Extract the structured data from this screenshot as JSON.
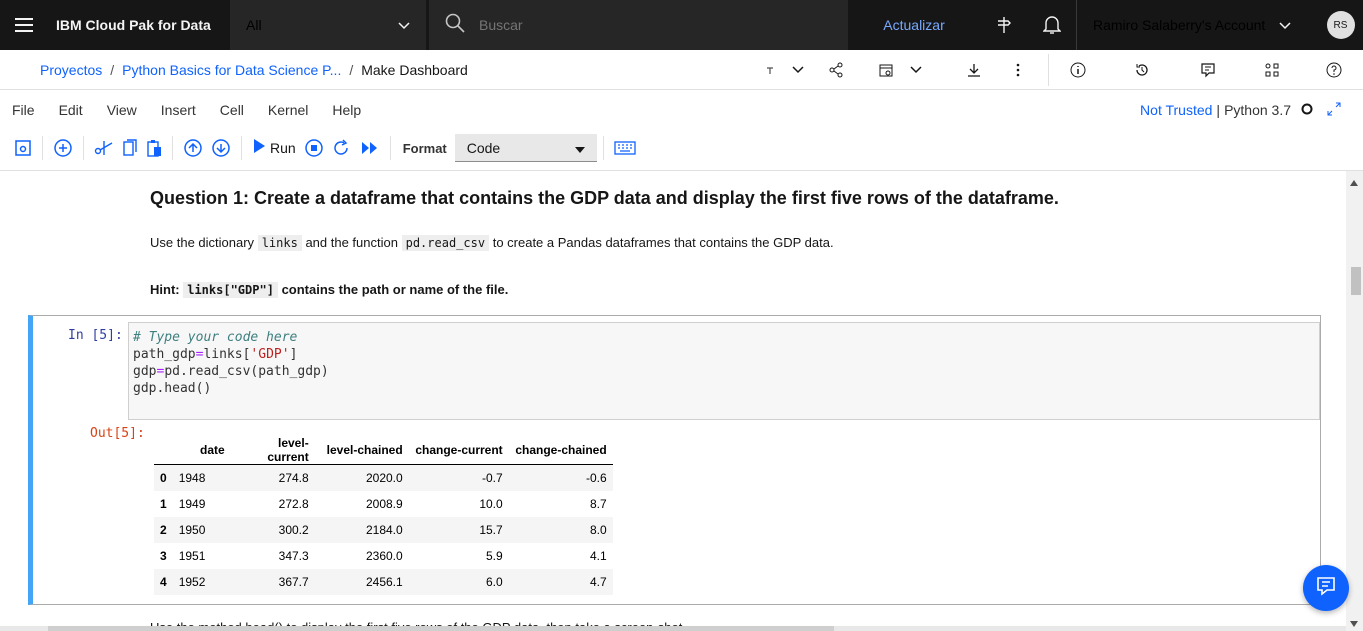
{
  "header": {
    "brand": "IBM Cloud Pak for Data",
    "scope_value": "All",
    "search_placeholder": "Buscar",
    "update_label": "Actualizar",
    "account_label": "Ramiro Salaberry's Account",
    "avatar_initials": "RS"
  },
  "breadcrumb": {
    "items": [
      "Proyectos",
      "Python Basics for Data Science P...",
      "Make Dashboard"
    ],
    "separator": "/"
  },
  "menu": {
    "items": [
      "File",
      "Edit",
      "View",
      "Insert",
      "Cell",
      "Kernel",
      "Help"
    ],
    "trust_status": "Not Trusted",
    "kernel_name": "Python 3.7"
  },
  "toolbar": {
    "run_label": "Run",
    "format_label": "Format",
    "format_value": "Code"
  },
  "notebook": {
    "question_heading": "Question 1: Create a dataframe that contains the GDP data and display the first five rows of the dataframe.",
    "instruction_pre": "Use the dictionary",
    "instruction_code1": "links",
    "instruction_mid": "and the function",
    "instruction_code2": "pd.read_csv",
    "instruction_post": "to create a Pandas dataframes that contains the GDP data.",
    "hint_label": "Hint:",
    "hint_code": "links[\"GDP\"]",
    "hint_text": "contains the path or name of the file.",
    "in_prompt": "In [5]:",
    "out_prompt": "Out[5]:",
    "code": {
      "line1": "# Type your code here",
      "line2_a": "path_gdp",
      "line2_b": "=",
      "line2_c": "links[",
      "line2_d": "'GDP'",
      "line2_e": "]",
      "line3_a": "gdp",
      "line3_b": "=",
      "line3_c": "pd.read_csv(path_gdp)",
      "line4": "gdp.head()"
    },
    "table": {
      "columns": [
        "date",
        "level-current",
        "level-chained",
        "change-current",
        "change-chained"
      ],
      "rows": [
        {
          "idx": "0",
          "date": "1948",
          "lc": "274.8",
          "lch": "2020.0",
          "cc": "-0.7",
          "cch": "-0.6"
        },
        {
          "idx": "1",
          "date": "1949",
          "lc": "272.8",
          "lch": "2008.9",
          "cc": "10.0",
          "cch": "8.7"
        },
        {
          "idx": "2",
          "date": "1950",
          "lc": "300.2",
          "lch": "2184.0",
          "cc": "15.7",
          "cch": "8.0"
        },
        {
          "idx": "3",
          "date": "1951",
          "lc": "347.3",
          "lch": "2360.0",
          "cc": "5.9",
          "cch": "4.1"
        },
        {
          "idx": "4",
          "date": "1952",
          "lc": "367.7",
          "lch": "2456.1",
          "cc": "6.0",
          "cch": "4.7"
        }
      ]
    },
    "next_text": "Use the method head() to display the first five rows of the GDP data, then take a screen-shot."
  },
  "colors": {
    "topbar_bg": "#161616",
    "link_blue": "#0f62fe",
    "cell_accent": "#42a5f5"
  }
}
